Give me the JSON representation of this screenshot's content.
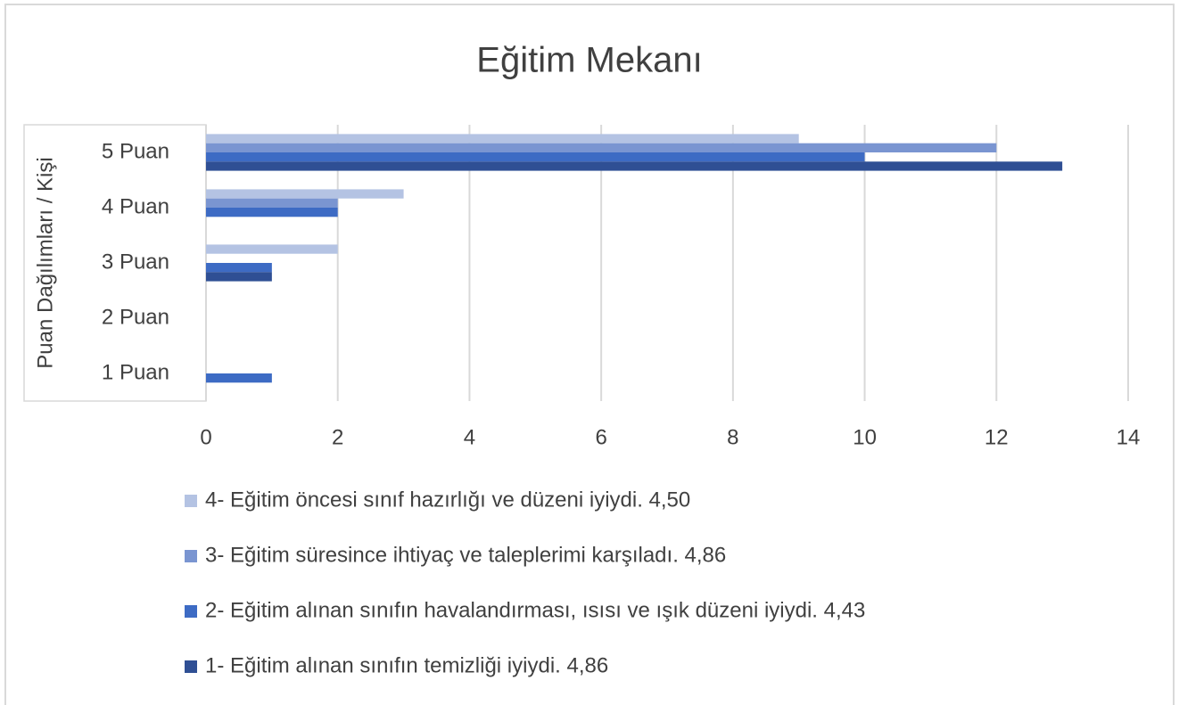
{
  "chart_data": {
    "type": "barh",
    "title": "Eğitim Mekanı",
    "y_label": "Puan Dağılımları / Kişi",
    "categories": [
      "1 Puan",
      "2 Puan",
      "3 Puan",
      "4 Puan",
      "5 Puan"
    ],
    "series": [
      {
        "name": "4- Eğitim öncesi sınıf hazırlığı ve düzeni iyiydi. 4,50",
        "color": "#b4c3e3",
        "values": [
          0,
          0,
          2,
          3,
          9
        ]
      },
      {
        "name": "3- Eğitim süresince ihtiyaç ve taleplerimi karşıladı. 4,86",
        "color": "#7a95d1",
        "values": [
          0,
          0,
          0,
          2,
          12
        ]
      },
      {
        "name": "2- Eğitim alınan sınıfın havalandırması, ısısı ve ışık düzeni iyiydi. 4,43",
        "color": "#3d6bc4",
        "values": [
          1,
          0,
          1,
          2,
          10
        ]
      },
      {
        "name": "1- Eğitim alınan sınıfın temizliği iyiydi. 4,86",
        "color": "#2f4f94",
        "values": [
          0,
          0,
          1,
          0,
          13
        ]
      }
    ],
    "xlim": [
      0,
      14
    ],
    "xticks": [
      0,
      2,
      4,
      6,
      8,
      10,
      12,
      14
    ],
    "grid": true,
    "legend": "bottom"
  }
}
